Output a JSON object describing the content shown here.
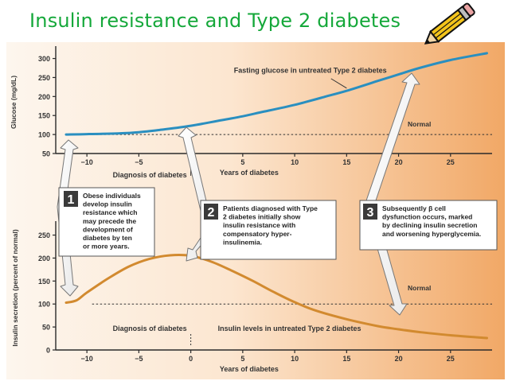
{
  "slide": {
    "title": "Insulin resistance and Type 2 diabetes",
    "pencil_icon": "pencil-icon",
    "colors": {
      "title": "#15a83a",
      "glucose_line": "#2a8fc0",
      "insulin_line": "#d28a2f",
      "panel_start": "#fdf6ee",
      "panel_end": "#f1a866",
      "box_number_bg": "#3a3a3a"
    }
  },
  "chart_data": [
    {
      "type": "line",
      "title": "",
      "xlabel": "Years of diabetes",
      "ylabel": "Glucose (mg/dL)",
      "xlim": [
        -13,
        29
      ],
      "ylim": [
        50,
        320
      ],
      "xticks": [
        -10,
        -5,
        0,
        5,
        10,
        15,
        20,
        25
      ],
      "xtick_labels": [
        "−10",
        "−5",
        "0",
        "5",
        "10",
        "15",
        "20",
        "25"
      ],
      "yticks": [
        50,
        100,
        150,
        200,
        250,
        300
      ],
      "series": [
        {
          "name": "Fasting glucose in untreated Type 2 diabetes",
          "color": "#2a8fc0",
          "x": [
            -12,
            -10,
            -7,
            -5,
            -3,
            0,
            3,
            5,
            7,
            10,
            13,
            15,
            18,
            20,
            22,
            25,
            28.5
          ],
          "y": [
            100,
            101,
            103,
            106,
            112,
            123,
            138,
            148,
            160,
            178,
            200,
            215,
            241,
            258,
            275,
            296,
            314
          ]
        }
      ],
      "reference_line": {
        "label": "Normal",
        "y": 100,
        "style": "dashed"
      },
      "annotation": {
        "text": "Diagnosis of diabetes",
        "x": 0
      }
    },
    {
      "type": "line",
      "title": "",
      "xlabel": "Years of diabetes",
      "ylabel": "Insulin secretion (percent of normal)",
      "xlim": [
        -13,
        29
      ],
      "ylim": [
        0,
        270
      ],
      "xticks": [
        -10,
        -5,
        0,
        5,
        10,
        15,
        20,
        25
      ],
      "xtick_labels": [
        "−10",
        "−5",
        "0",
        "5",
        "10",
        "15",
        "20",
        "25"
      ],
      "yticks": [
        0,
        50,
        100,
        150,
        200,
        250
      ],
      "series": [
        {
          "name": "Insulin levels in untreated Type 2 diabetes",
          "color": "#d28a2f",
          "x": [
            -12,
            -11,
            -10,
            -8,
            -6,
            -4,
            -2,
            0,
            2,
            4,
            6,
            8,
            10,
            12,
            15,
            18,
            20,
            22,
            25,
            28.5
          ],
          "y": [
            103,
            108,
            125,
            155,
            181,
            198,
            206,
            205,
            192,
            172,
            150,
            126,
            104,
            86,
            67,
            52,
            45,
            39,
            32,
            26
          ]
        }
      ],
      "reference_line": {
        "label": "Normal",
        "y": 100,
        "style": "dashed"
      },
      "annotation": {
        "text": "Diagnosis of diabetes",
        "x": 0
      }
    }
  ],
  "callouts": [
    {
      "number": "1",
      "lines": [
        "Obese individuals",
        "develop insulin",
        "resistance which",
        "may precede the",
        "development of",
        "diabetes by ten",
        "or more years."
      ]
    },
    {
      "number": "2",
      "lines": [
        "Patients diagnosed with Type",
        "2 diabetes initially show",
        "insulin resistance with",
        "compensatory hyper-",
        "insulinemia."
      ]
    },
    {
      "number": "3",
      "lines": [
        "Subsequently β cell",
        "dysfunction occurs, marked",
        "by declining insulin secretion",
        "and worsening hyperglycemia."
      ]
    }
  ]
}
